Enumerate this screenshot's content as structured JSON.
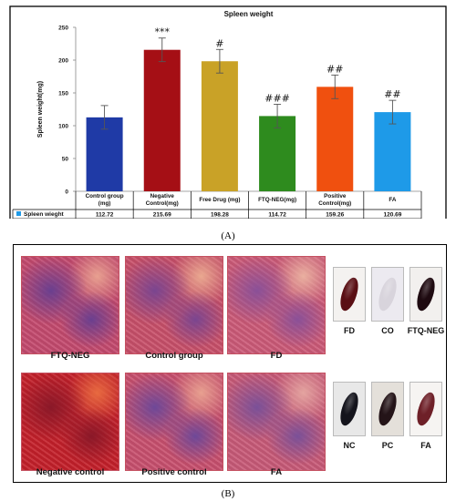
{
  "figure": {
    "label_a": "(A)",
    "label_b": "(B)"
  },
  "chart_data": {
    "type": "bar",
    "title": "Spleen weight",
    "ylabel": "Spleen weight(mg)",
    "xlabel": "",
    "ylim": [
      0,
      250
    ],
    "yticks": [
      0,
      50,
      100,
      150,
      200,
      250
    ],
    "categories": [
      [
        "Control group",
        "(mg)"
      ],
      [
        "Negative",
        "Control(mg)"
      ],
      [
        "Free Drug (mg)"
      ],
      [
        "FTQ-NEG(mg)"
      ],
      [
        "Positive",
        "Control(mg)"
      ],
      [
        "FA"
      ]
    ],
    "series": [
      {
        "name": "Spleen wieght",
        "values": [
          112.72,
          215.69,
          198.28,
          114.72,
          159.26,
          120.69
        ],
        "value_labels": [
          "112.72",
          "215.69",
          "198.28",
          "114.72",
          "159.26",
          "120.69"
        ],
        "errors": [
          18,
          18,
          18,
          18,
          18,
          18
        ],
        "colors": [
          "#1f3aa6",
          "#a50f15",
          "#c9a227",
          "#2e8b1e",
          "#f0500f",
          "#1e9ae8"
        ],
        "annotations": [
          "",
          "***",
          "#",
          "###",
          "##",
          "##"
        ]
      }
    ],
    "legend_placement": "data-table",
    "grid": false
  },
  "histology": [
    {
      "label": "FTQ-NEG",
      "base": "#c44a6e",
      "dark": "#6a3f8f",
      "light": "#e8a090"
    },
    {
      "label": "Control group",
      "base": "#c8506a",
      "dark": "#7a4590",
      "light": "#eaa890"
    },
    {
      "label": "FD",
      "base": "#cc5a78",
      "dark": "#8a5098",
      "light": "#eab0a0"
    },
    {
      "label": "Negative control",
      "base": "#c4202a",
      "dark": "#8a1828",
      "light": "#e86a40"
    },
    {
      "label": "Positive control",
      "base": "#c8506e",
      "dark": "#6e4898",
      "light": "#e8a090"
    },
    {
      "label": "FA",
      "base": "#c85a78",
      "dark": "#7a5098",
      "light": "#e4a4a0"
    }
  ],
  "spleens": [
    {
      "label": "FD",
      "bg": "#f4f2f0",
      "organ": "#5a0f14"
    },
    {
      "label": "CO",
      "bg": "#eceaf0",
      "organ": "#d8d4dc"
    },
    {
      "label": "FTQ-NEG",
      "bg": "#f2f0ee",
      "organ": "#1e0a10"
    },
    {
      "label": "NC",
      "bg": "#e8e8e8",
      "organ": "#14141c"
    },
    {
      "label": "PC",
      "bg": "#e4e0da",
      "organ": "#241418"
    },
    {
      "label": "FA",
      "bg": "#f6f4f2",
      "organ": "#6e2028"
    }
  ],
  "colors": {
    "legend_marker": "#1e9ae8",
    "axis": "#888888"
  }
}
